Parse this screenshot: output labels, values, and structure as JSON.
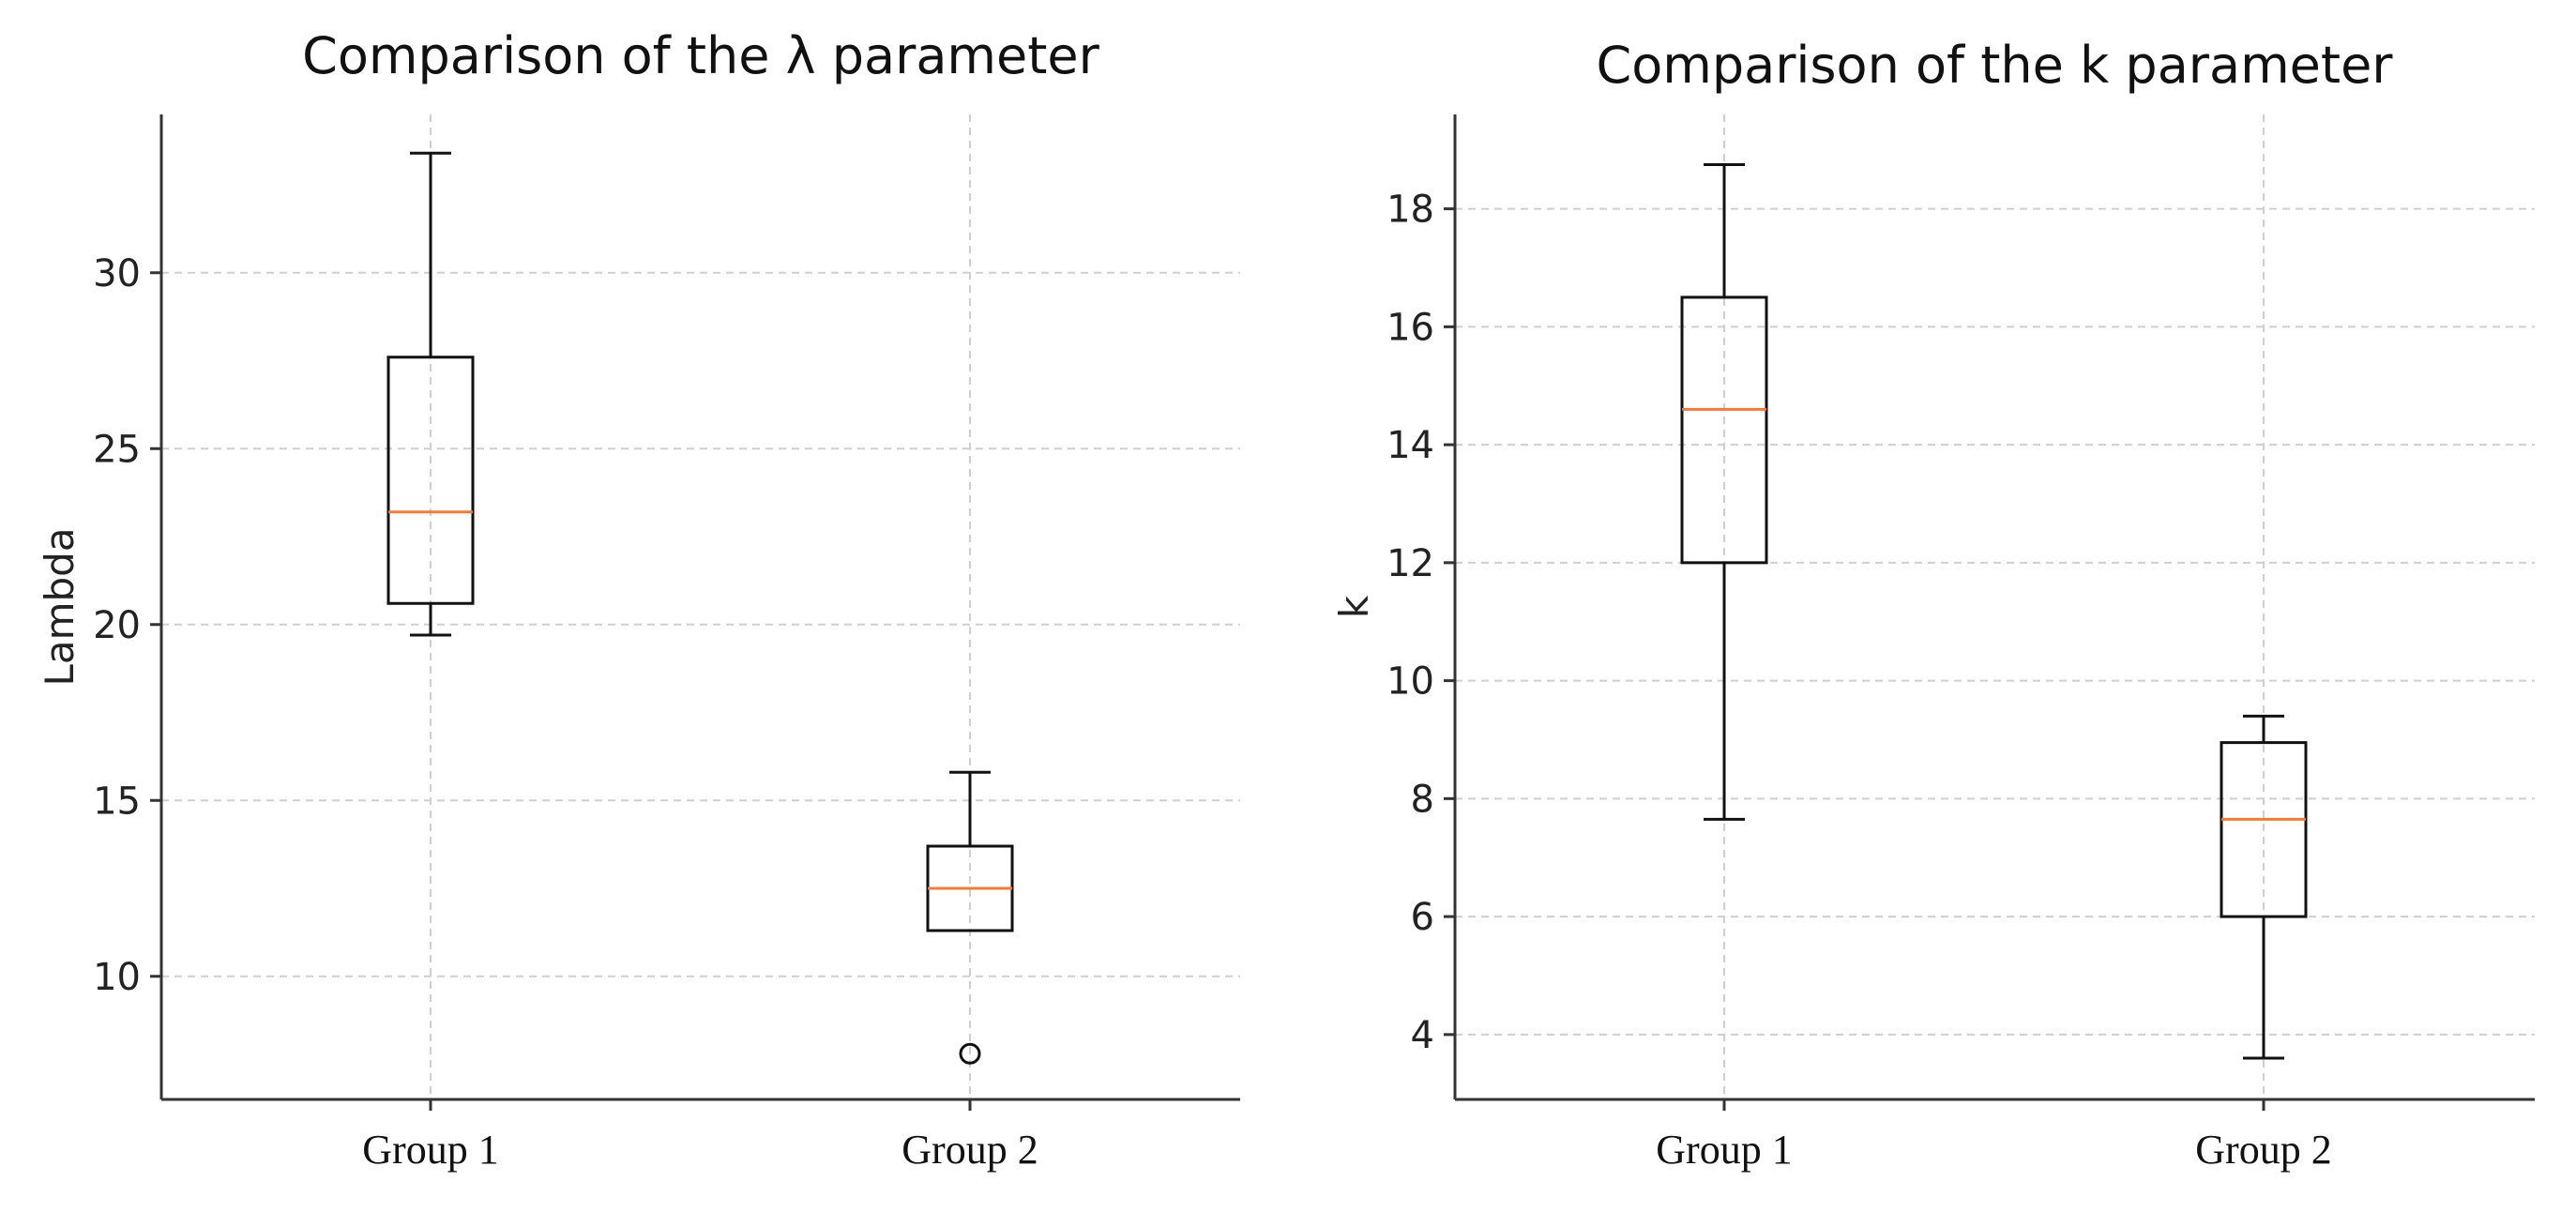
{
  "chart_data": [
    {
      "type": "box",
      "title": "Comparison of the λ parameter",
      "xlabel": "",
      "ylabel": "Lambda",
      "categories": [
        "Group 1",
        "Group 2"
      ],
      "ylim": [
        6.5,
        34.5
      ],
      "yticks": [
        10,
        15,
        20,
        25,
        30
      ],
      "grid": true,
      "boxes": [
        {
          "name": "Group 1",
          "whisker_low": 19.7,
          "q1": 20.6,
          "median": 23.2,
          "q3": 27.6,
          "whisker_high": 33.4,
          "outliers": []
        },
        {
          "name": "Group 2",
          "whisker_low": 11.3,
          "q1": 11.3,
          "median": 12.5,
          "q3": 13.7,
          "whisker_high": 15.8,
          "outliers": [
            7.8
          ]
        }
      ]
    },
    {
      "type": "box",
      "title": "Comparison of the k parameter",
      "xlabel": "",
      "ylabel": "k",
      "categories": [
        "Group 1",
        "Group 2"
      ],
      "ylim": [
        2.9,
        19.6
      ],
      "yticks": [
        4,
        6,
        8,
        10,
        12,
        14,
        16,
        18
      ],
      "grid": true,
      "boxes": [
        {
          "name": "Group 1",
          "whisker_low": 7.65,
          "q1": 12.0,
          "median": 14.6,
          "q3": 16.5,
          "whisker_high": 18.75,
          "outliers": []
        },
        {
          "name": "Group 2",
          "whisker_low": 3.6,
          "q1": 6.0,
          "median": 7.65,
          "q3": 8.95,
          "whisker_high": 9.4,
          "outliers": []
        }
      ]
    }
  ],
  "colors": {
    "box": "#111111",
    "median": "#f07b3a",
    "grid": "#cfcfcf",
    "axis": "#333333"
  }
}
